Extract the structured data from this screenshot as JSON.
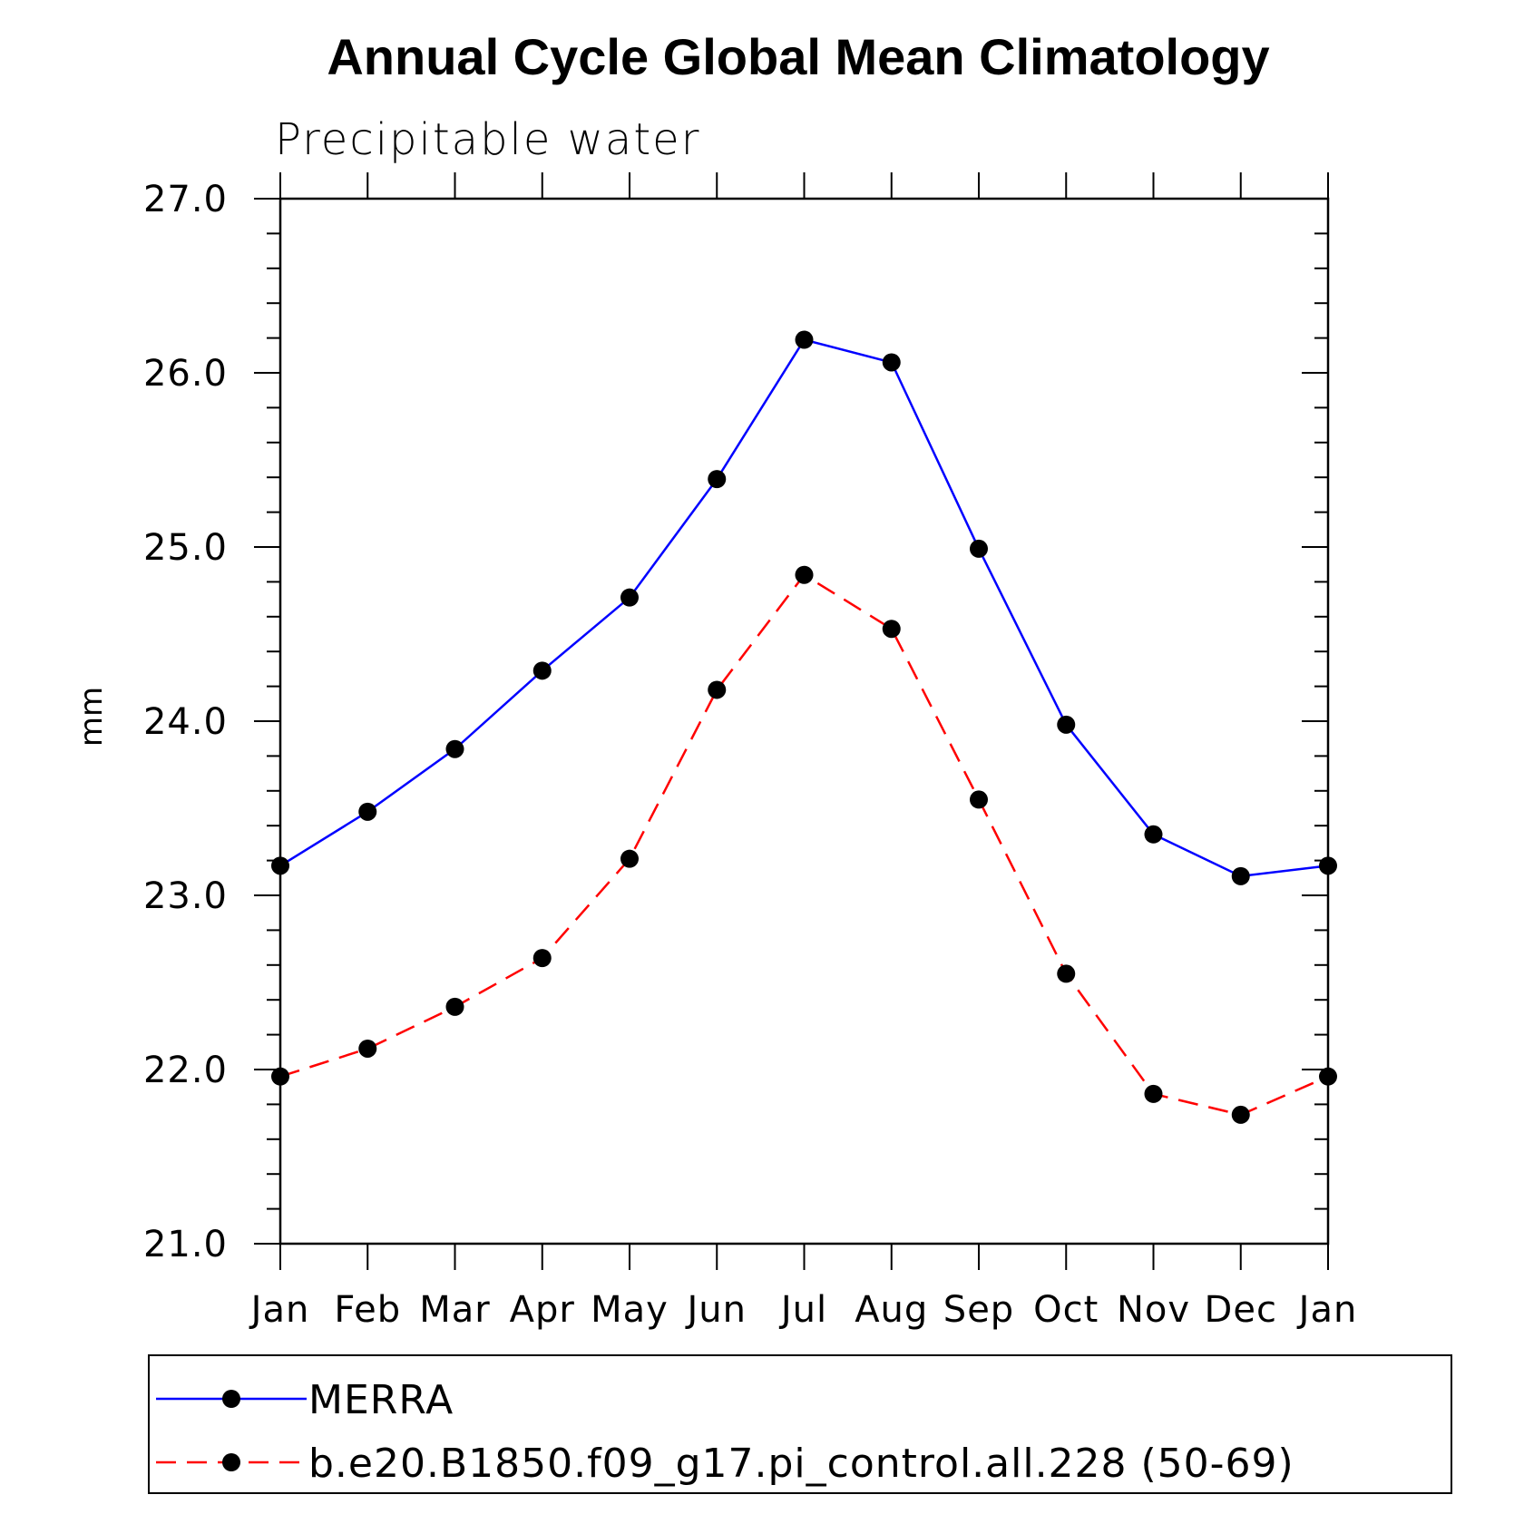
{
  "chart_data": {
    "type": "line",
    "title": "Annual Cycle Global Mean Climatology",
    "subtitle": "Precipitable water",
    "xlabel": "",
    "ylabel": "mm",
    "categories": [
      "Jan",
      "Feb",
      "Mar",
      "Apr",
      "May",
      "Jun",
      "Jul",
      "Aug",
      "Sep",
      "Oct",
      "Nov",
      "Dec",
      "Jan"
    ],
    "ylim": [
      21.0,
      27.0
    ],
    "yticks": [
      "21.0",
      "22.0",
      "23.0",
      "24.0",
      "25.0",
      "26.0",
      "27.0"
    ],
    "grid": false,
    "legend_position": "bottom",
    "series": [
      {
        "name": "MERRA",
        "color": "#0000ff",
        "style": "solid",
        "marker": "filled-circle",
        "values": [
          23.17,
          23.48,
          23.84,
          24.29,
          24.71,
          25.39,
          26.19,
          26.06,
          24.99,
          23.98,
          23.35,
          23.11,
          23.17
        ]
      },
      {
        "name": "b.e20.B1850.f09_g17.pi_control.all.228 (50-69)",
        "color": "#ff0000",
        "style": "dashed",
        "marker": "filled-circle",
        "values": [
          21.96,
          22.12,
          22.36,
          22.64,
          23.21,
          24.18,
          24.84,
          24.53,
          23.55,
          22.55,
          21.86,
          21.74,
          21.96
        ]
      }
    ]
  }
}
